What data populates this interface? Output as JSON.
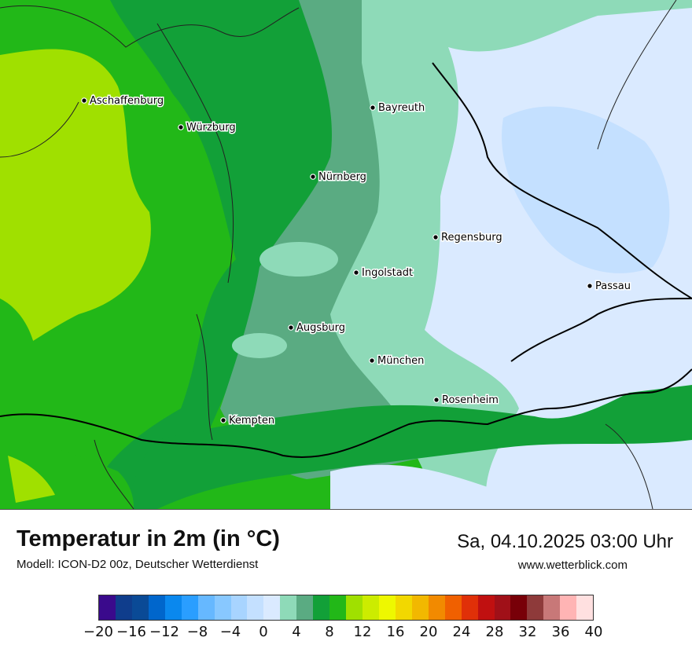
{
  "map": {
    "cities": [
      {
        "name": "Aschaffenburg"
      },
      {
        "name": "Würzburg"
      },
      {
        "name": "Bayreuth"
      },
      {
        "name": "Nürnberg"
      },
      {
        "name": "Regensburg"
      },
      {
        "name": "Ingolstadt"
      },
      {
        "name": "Passau"
      },
      {
        "name": "Augsburg"
      },
      {
        "name": "München"
      },
      {
        "name": "Rosenheim"
      },
      {
        "name": "Kempten"
      }
    ]
  },
  "header": {
    "title": "Temperatur in 2m (in °C)",
    "subtitle": "Modell: ICON-D2 00z, Deutscher Wetterdienst",
    "datetime": "Sa, 04.10.2025 03:00 Uhr",
    "website": "www.wetterblick.com"
  },
  "legend": {
    "colors": [
      "#3a0a8c",
      "#0f3d8c",
      "#0a4a96",
      "#0066cc",
      "#0a88ee",
      "#2a9eff",
      "#66b8ff",
      "#88c8ff",
      "#a8d4ff",
      "#c4e0ff",
      "#daeaff",
      "#8edab8",
      "#5aab82",
      "#12a038",
      "#22b818",
      "#a0e000",
      "#ccec00",
      "#eef800",
      "#f2d800",
      "#f2b800",
      "#f28a00",
      "#f06000",
      "#e03008",
      "#c01010",
      "#a01018",
      "#780008",
      "#8e3a3a",
      "#c87878",
      "#ffb4b4",
      "#ffe0e0"
    ],
    "tick_labels": [
      "−20",
      "−16",
      "−12",
      "−8",
      "−4",
      "0",
      "4",
      "8",
      "12",
      "16",
      "20",
      "24",
      "28",
      "32",
      "36",
      "40"
    ]
  }
}
